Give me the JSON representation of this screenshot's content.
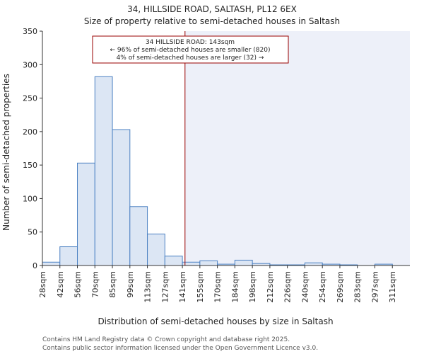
{
  "chart_data": {
    "type": "bar",
    "title": "34, HILLSIDE ROAD, SALTASH, PL12 6EX",
    "subtitle": "Size of property relative to semi-detached houses in Saltash",
    "xlabel": "Distribution of semi-detached houses by size in Saltash",
    "ylabel": "Number of semi-detached properties",
    "categories": [
      "28sqm",
      "42sqm",
      "56sqm",
      "70sqm",
      "85sqm",
      "99sqm",
      "113sqm",
      "127sqm",
      "141sqm",
      "155sqm",
      "170sqm",
      "184sqm",
      "198sqm",
      "212sqm",
      "226sqm",
      "240sqm",
      "254sqm",
      "269sqm",
      "283sqm",
      "297sqm",
      "311sqm"
    ],
    "values": [
      5,
      28,
      153,
      282,
      203,
      88,
      47,
      14,
      5,
      7,
      2,
      8,
      3,
      1,
      1,
      4,
      2,
      1,
      0,
      2,
      0
    ],
    "ylim": [
      0,
      350
    ],
    "yticks": [
      0,
      50,
      100,
      150,
      200,
      250,
      300,
      350
    ],
    "grid": false,
    "bar_color": "#dce6f4",
    "bar_edge_color": "#4b80c2",
    "marker": {
      "value_index": 8.15,
      "color": "#990000",
      "line1": "34 HILLSIDE ROAD: 143sqm",
      "line2": "← 96% of semi-detached houses are smaller (820)",
      "line3": "4% of semi-detached houses are larger (32) →"
    },
    "highlight_region_color": "#edf0f9"
  },
  "footer": {
    "line1": "Contains HM Land Registry data © Crown copyright and database right 2025.",
    "line2": "Contains public sector information licensed under the Open Government Licence v3.0."
  }
}
